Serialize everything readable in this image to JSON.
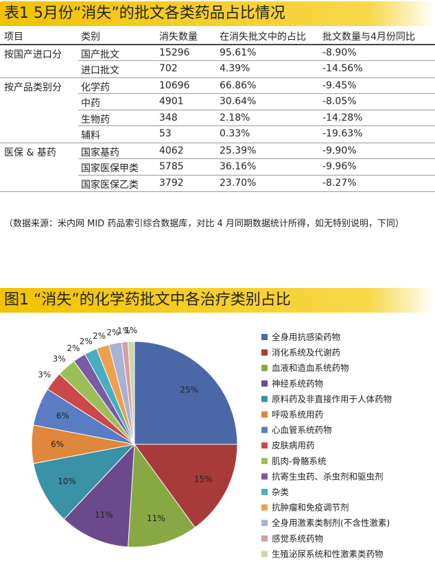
{
  "table": {
    "title": "表1 5月份“消失”的批文各类药品占比情况",
    "columns": [
      "项目",
      "类别",
      "消失数量",
      "在消失批文中的占比",
      "批文数量与4月份同比"
    ],
    "groups": [
      {
        "name": "按国产进口分",
        "rows": [
          [
            "国产批文",
            "15296",
            "95.61%",
            "-8.90%"
          ],
          [
            "进口批文",
            "702",
            "4.39%",
            "-14.56%"
          ]
        ]
      },
      {
        "name": "按产品类别分",
        "rows": [
          [
            "化学药",
            "10696",
            "66.86%",
            "-9.45%"
          ],
          [
            "中药",
            "4901",
            "30.64%",
            "-8.05%"
          ],
          [
            "生物药",
            "348",
            "2.18%",
            "-14.28%"
          ],
          [
            "辅料",
            "53",
            "0.33%",
            "-19.63%"
          ]
        ]
      },
      {
        "name": "医保 & 基药",
        "rows": [
          [
            "国家基药",
            "4062",
            "25.39%",
            "-9.90%"
          ],
          [
            "国家医保甲类",
            "5785",
            "36.16%",
            "-9.96%"
          ],
          [
            "国家医保乙类",
            "3792",
            "23.70%",
            "-8.27%"
          ]
        ]
      }
    ],
    "note": "（数据来源：米内网 MID 药品索引综合数据库，对比 4 月同期数据统计所得，如无特别说明，下同）"
  },
  "chart_data": {
    "type": "pie",
    "title": "图1 “消失”的化学药批文中各治疗类别占比",
    "categories": [
      "全身用抗感染药物",
      "消化系统及代谢药",
      "血液和造血系统药物",
      "神经系统药物",
      "原料药及非直接作用于人体药物",
      "呼吸系统用药",
      "心血管系统药物",
      "皮肤病用药",
      "肌肉-骨骼系统",
      "抗寄生虫药、杀虫剂和驱虫剂",
      "杂类",
      "抗肿瘤和免疫调节剂",
      "全身用激素类制剂(不含性激素)",
      "感觉系统药物",
      "生殖泌尿系统和性激素类药物"
    ],
    "values": [
      25,
      15,
      11,
      11,
      10,
      6,
      6,
      3,
      3,
      2,
      2,
      2,
      2,
      1,
      1
    ],
    "value_labels": [
      "25%",
      "15%",
      "11%",
      "11%",
      "10%",
      "6%",
      "6%",
      "3%",
      "3%",
      "2%",
      "2%",
      "2%",
      "2%",
      "1%",
      "1%"
    ],
    "colors": [
      "#4a67a8",
      "#a83a3a",
      "#87a843",
      "#6a4a8c",
      "#3a92a6",
      "#df873a",
      "#5a7cc2",
      "#cc4848",
      "#9bbf58",
      "#7b5ca3",
      "#48aec4",
      "#ef9f4e",
      "#a6b2d6",
      "#d69e9e",
      "#c6daa6"
    ]
  }
}
